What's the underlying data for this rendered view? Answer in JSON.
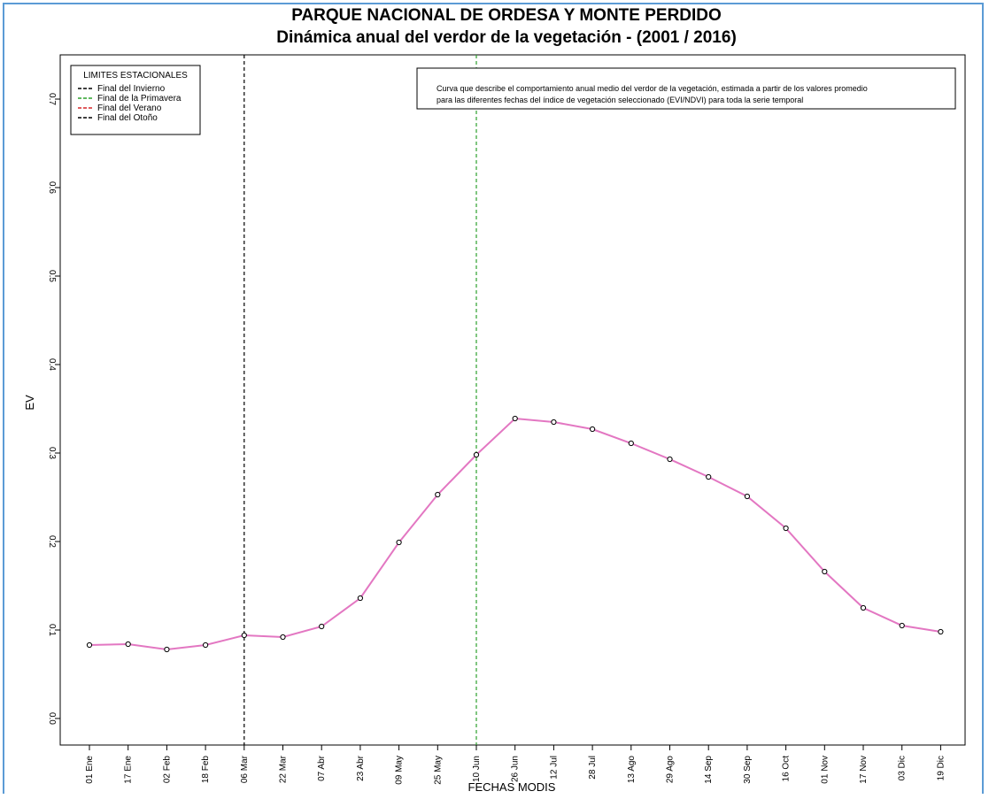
{
  "chart_data": {
    "type": "line",
    "title": "PARQUE NACIONAL DE ORDESA Y MONTE PERDIDO",
    "subtitle": "Dinámica anual del verdor de la vegetación - (2001 / 2016)",
    "xlabel": "FECHAS MODIS",
    "ylabel": "EV",
    "ylim": [
      0.0,
      0.7
    ],
    "y_ticks": [
      "0.0",
      "0.1",
      "0.2",
      "0.3",
      "0.4",
      "0.5",
      "0.6",
      "0.7"
    ],
    "categories": [
      "01 Ene",
      "17 Ene",
      "02 Feb",
      "18 Feb",
      "06 Mar",
      "22 Mar",
      "07 Abr",
      "23 Abr",
      "09 May",
      "25 May",
      "10 Jun",
      "26 Jun",
      "12 Jul",
      "28 Jul",
      "13 Ago",
      "29 Ago",
      "14 Sep",
      "30 Sep",
      "16 Oct",
      "01 Nov",
      "17 Nov",
      "03 Dic",
      "19 Dic"
    ],
    "series": [
      {
        "values": [
          0.083,
          0.084,
          0.078,
          0.083,
          0.094,
          0.092,
          0.104,
          0.136,
          0.199,
          0.253,
          0.298,
          0.339,
          0.335,
          0.327,
          0.311,
          0.293,
          0.273,
          0.251,
          0.215,
          0.166,
          0.125,
          0.105,
          0.098
        ],
        "color": "#e377c2"
      }
    ],
    "vlines": [
      {
        "at": "06 Mar",
        "color": "#000000"
      },
      {
        "at": "10 Jun",
        "color": "#2ca02c"
      }
    ],
    "legend": {
      "title": "LIMITES ESTACIONALES",
      "position": "top-left",
      "entries": [
        {
          "label": "Final del Invierno",
          "color": "#000000"
        },
        {
          "label": "Final de la Primavera",
          "color": "#2ca02c"
        },
        {
          "label": "Final del Verano",
          "color": "#d62728"
        },
        {
          "label": "Final del Otoño",
          "color": "#000000"
        }
      ]
    },
    "annotation": [
      "Curva que describe el comportamiento anual medio del verdor de la vegetación, estimada a partir de los valores promedio",
      "para las diferentes fechas del índice de vegetación seleccionado (EVI/NDVI) para toda la serie temporal"
    ],
    "grid": false,
    "point_marker": "circle"
  }
}
